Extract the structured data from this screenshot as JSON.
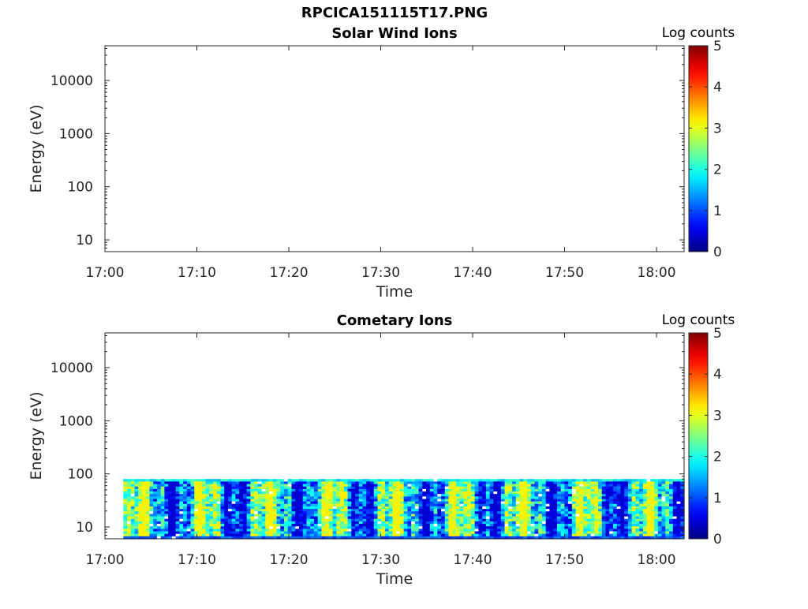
{
  "figure": {
    "title": "RPCICA151115T17.PNG"
  },
  "chart_data": [
    {
      "type": "heatmap",
      "title": "Solar Wind Ions",
      "xlabel": "Time",
      "ylabel": "Energy (eV)",
      "x_ticks": [
        "17:00",
        "17:10",
        "17:20",
        "17:30",
        "17:40",
        "17:50",
        "18:00"
      ],
      "xlim": [
        "17:00",
        "18:03"
      ],
      "y_ticks": [
        "10",
        "100",
        "1000",
        "10000"
      ],
      "y_scale": "log",
      "ylim": [
        6,
        45000
      ],
      "colorbar": {
        "label": "Log counts",
        "ticks": [
          "0",
          "1",
          "2",
          "3",
          "4",
          "5"
        ],
        "range": [
          0,
          5
        ],
        "colormap": "jet"
      },
      "data_present": false
    },
    {
      "type": "heatmap",
      "title": "Cometary Ions",
      "xlabel": "Time",
      "ylabel": "Energy (eV)",
      "x_ticks": [
        "17:00",
        "17:10",
        "17:20",
        "17:30",
        "17:40",
        "17:50",
        "18:00"
      ],
      "xlim": [
        "17:00",
        "18:03"
      ],
      "y_ticks": [
        "10",
        "100",
        "1000",
        "10000"
      ],
      "y_scale": "log",
      "ylim": [
        6,
        45000
      ],
      "colorbar": {
        "label": "Log counts",
        "ticks": [
          "0",
          "1",
          "2",
          "3",
          "4",
          "5"
        ],
        "range": [
          0,
          5
        ],
        "colormap": "jet"
      },
      "data_present": true,
      "data_time_range": [
        "17:02",
        "18:03"
      ],
      "data_energy_range_eV": [
        6,
        80
      ],
      "log_count_range": [
        0,
        3.2
      ]
    }
  ]
}
